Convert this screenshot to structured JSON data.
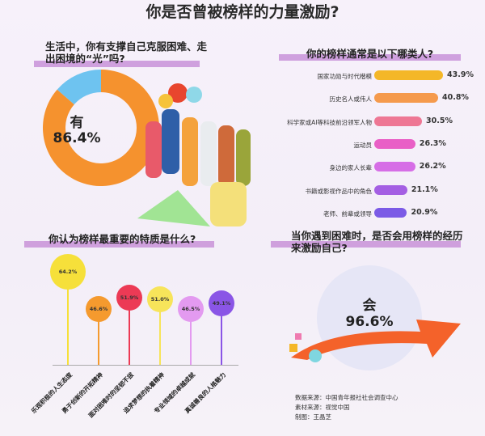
{
  "title": "你是否曾被榜样的力量激励?",
  "colors": {
    "header_bar": "#c892d8",
    "donut_yes": "#f5922e",
    "donut_other": "#6ec3f0",
    "arrow": "#f4622a"
  },
  "chart_data": [
    {
      "type": "pie",
      "donut": true,
      "title": "生活中，你有支撑自己克服困难、走出困境的“光”吗?",
      "center_label": "有",
      "center_value": "86.4%",
      "values": [
        86.4,
        13.6
      ],
      "colors": [
        "#f5922e",
        "#6ec3f0"
      ]
    },
    {
      "type": "bar",
      "orientation": "horizontal",
      "title": "你的榜样通常是以下哪类人?",
      "categories": [
        "国家功勋与时代楷模",
        "历史名人或伟人",
        "科学家或AI等科技前沿领军人物",
        "运动员",
        "身边的家人长辈",
        "书籍或影视作品中的角色",
        "老师、前辈或领导"
      ],
      "values": [
        43.9,
        40.8,
        30.5,
        26.3,
        26.2,
        21.1,
        20.9
      ],
      "labels": [
        "43.9%",
        "40.8%",
        "30.5%",
        "26.3%",
        "26.2%",
        "21.1%",
        "20.9%"
      ],
      "colors": [
        "#f4b728",
        "#f59a4c",
        "#ee7794",
        "#e95fc6",
        "#d66ee6",
        "#a45fe3",
        "#7b5ae6"
      ]
    },
    {
      "type": "lollipop",
      "title": "你认为榜样最重要的特质是什么?",
      "categories": [
        "乐观积极的人生态度",
        "勇于创新的开拓精神",
        "面对困难时的坚韧不拔",
        "追求梦想的执着精神",
        "专业领域的卓越成就",
        "真诚善良的人格魅力"
      ],
      "values": [
        64.2,
        46.6,
        51.9,
        51.0,
        46.5,
        49.1
      ],
      "labels": [
        "64.2%",
        "46.6%",
        "51.9%",
        "51.0%",
        "46.5%",
        "49.1%"
      ],
      "colors": [
        "#f6e03a",
        "#f59a2e",
        "#ec3a55",
        "#f7e45a",
        "#e39af0",
        "#8a55e6"
      ]
    },
    {
      "type": "single_stat",
      "title": "当你遇到困难时，是否会用榜样的经历来激励自己?",
      "label": "会",
      "value": "96.6%"
    }
  ],
  "footer": [
    "数据来源：中国青年报社社会调查中心",
    "素材来源：视觉中国",
    "制图：王晶芝"
  ]
}
